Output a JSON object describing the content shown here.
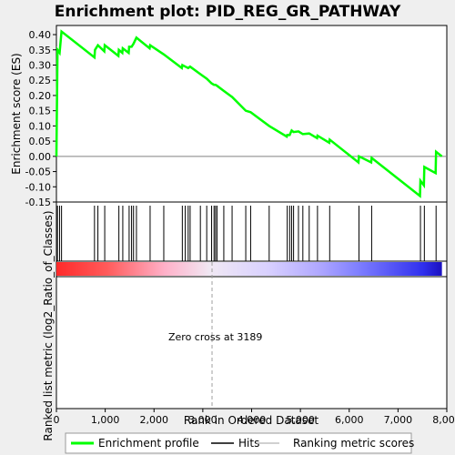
{
  "chart_data": {
    "type": "line",
    "title": "Enrichment plot: PID_REG_GR_PATHWAY",
    "xlabel": "Rank in Ordered Dataset",
    "ylabel_top": "Enrichment score (ES)",
    "ylabel_bottom": "Ranked list metric (log2_Ratio_of_Classes)",
    "annotation": "Zero cross at 3189",
    "xlim": [
      0,
      8000
    ],
    "ylim": [
      -0.15,
      0.43
    ],
    "xticks": [
      0,
      1000,
      2000,
      3000,
      4000,
      5000,
      6000,
      7000,
      8000
    ],
    "xtick_labels": [
      "0",
      "1,000",
      "2,000",
      "3,000",
      "4,000",
      "5,000",
      "6,000",
      "7,000",
      "8,000"
    ],
    "yticks": [
      -0.15,
      -0.1,
      -0.05,
      0.0,
      0.05,
      0.1,
      0.15,
      0.2,
      0.25,
      0.3,
      0.35,
      0.4
    ],
    "ytick_labels": [
      "-0.15",
      "-0.10",
      "-0.05",
      "0.00",
      "0.05",
      "0.10",
      "0.15",
      "0.20",
      "0.25",
      "0.30",
      "0.35",
      "0.40"
    ],
    "zero_cross": 3189,
    "total_rank": 7900,
    "hits": [
      22,
      65,
      105,
      780,
      850,
      990,
      1280,
      1360,
      1490,
      1540,
      1580,
      1640,
      1920,
      2200,
      2580,
      2640,
      2700,
      2740,
      2950,
      3080,
      3180,
      3230,
      3260,
      3290,
      3430,
      3600,
      3880,
      3980,
      4360,
      4730,
      4780,
      4820,
      4860,
      4960,
      5050,
      5180,
      5350,
      5600,
      6200,
      6460,
      7460,
      7540,
      7780
    ],
    "es_profile": [
      [
        0,
        0.0
      ],
      [
        22,
        0.35
      ],
      [
        65,
        0.34
      ],
      [
        105,
        0.41
      ],
      [
        780,
        0.325
      ],
      [
        790,
        0.35
      ],
      [
        850,
        0.365
      ],
      [
        980,
        0.345
      ],
      [
        990,
        0.365
      ],
      [
        1270,
        0.33
      ],
      [
        1280,
        0.35
      ],
      [
        1350,
        0.34
      ],
      [
        1360,
        0.355
      ],
      [
        1480,
        0.34
      ],
      [
        1490,
        0.36
      ],
      [
        1540,
        0.36
      ],
      [
        1580,
        0.37
      ],
      [
        1640,
        0.39
      ],
      [
        1910,
        0.355
      ],
      [
        1920,
        0.365
      ],
      [
        2200,
        0.335
      ],
      [
        2570,
        0.29
      ],
      [
        2580,
        0.3
      ],
      [
        2640,
        0.295
      ],
      [
        2700,
        0.29
      ],
      [
        2740,
        0.295
      ],
      [
        2950,
        0.27
      ],
      [
        3080,
        0.255
      ],
      [
        3180,
        0.24
      ],
      [
        3230,
        0.235
      ],
      [
        3260,
        0.235
      ],
      [
        3290,
        0.232
      ],
      [
        3430,
        0.215
      ],
      [
        3600,
        0.195
      ],
      [
        3880,
        0.15
      ],
      [
        3980,
        0.145
      ],
      [
        4360,
        0.1
      ],
      [
        4720,
        0.065
      ],
      [
        4730,
        0.07
      ],
      [
        4780,
        0.07
      ],
      [
        4820,
        0.085
      ],
      [
        4860,
        0.08
      ],
      [
        4960,
        0.082
      ],
      [
        5050,
        0.073
      ],
      [
        5180,
        0.075
      ],
      [
        5340,
        0.06
      ],
      [
        5350,
        0.068
      ],
      [
        5590,
        0.045
      ],
      [
        5600,
        0.055
      ],
      [
        6190,
        -0.02
      ],
      [
        6200,
        0.0
      ],
      [
        6450,
        -0.02
      ],
      [
        6460,
        -0.005
      ],
      [
        7450,
        -0.13
      ],
      [
        7460,
        -0.08
      ],
      [
        7530,
        -0.095
      ],
      [
        7540,
        -0.035
      ],
      [
        7770,
        -0.055
      ],
      [
        7780,
        0.015
      ],
      [
        7900,
        0.0
      ]
    ],
    "legend": [
      {
        "label": "Enrichment profile",
        "color": "#00ff00"
      },
      {
        "label": "Hits",
        "color": "#000000"
      },
      {
        "label": "Ranking metric scores",
        "color": "#c0c0c0"
      }
    ]
  }
}
